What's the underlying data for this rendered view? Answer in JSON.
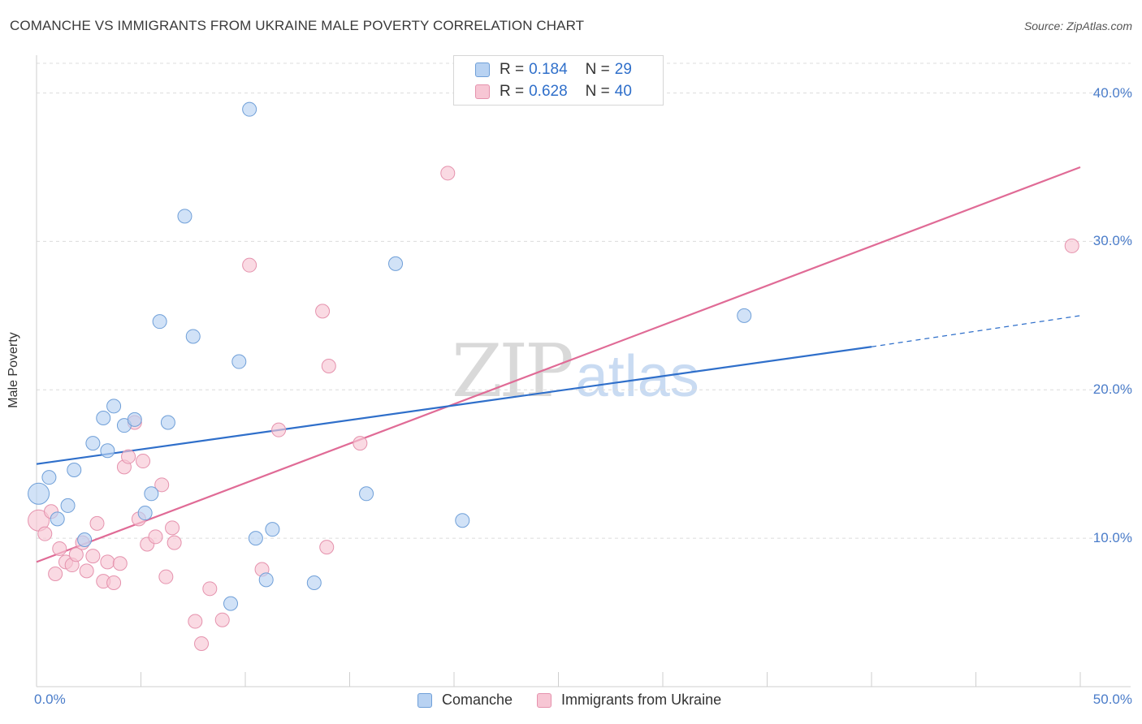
{
  "title": "COMANCHE VS IMMIGRANTS FROM UKRAINE MALE POVERTY CORRELATION CHART",
  "source": "Source: ZipAtlas.com",
  "watermark": {
    "zip": "ZIP",
    "atlas": "atlas"
  },
  "legend": {
    "series1": {
      "r_label": "R =",
      "r_value": "0.184",
      "n_label": "N =",
      "n_value": "29"
    },
    "series2": {
      "r_label": "R =",
      "r_value": "0.628",
      "n_label": "N =",
      "n_value": "40"
    }
  },
  "colors": {
    "comanche_fill": "#b8d2f2",
    "comanche_stroke": "#6f9fd8",
    "comanche_line": "#2f6fca",
    "ukraine_fill": "#f7c6d4",
    "ukraine_stroke": "#e592ad",
    "ukraine_line": "#e06b96",
    "grid": "#dcdcdc",
    "tick_text": "#4a7cc9"
  },
  "chart_data": {
    "type": "scatter",
    "title": "COMANCHE VS IMMIGRANTS FROM UKRAINE MALE POVERTY CORRELATION CHART",
    "xlabel": "",
    "ylabel": "Male Poverty",
    "xlim": [
      0,
      50
    ],
    "ylim": [
      0,
      42
    ],
    "x_tick_labels": [
      "0.0%",
      "50.0%"
    ],
    "y_ticks": [
      10,
      20,
      30,
      40
    ],
    "y_tick_labels": [
      "10.0%",
      "20.0%",
      "30.0%",
      "40.0%"
    ],
    "legend_position": "top-center",
    "series": [
      {
        "name": "Comanche",
        "r": 0.184,
        "n": 29,
        "trend": {
          "x": [
            0,
            40
          ],
          "y": [
            15.0,
            22.9
          ],
          "dashed_extension": {
            "x": [
              40,
              50
            ],
            "y": [
              22.9,
              25.0
            ]
          }
        },
        "points": [
          {
            "x": 0.1,
            "y": 13.0,
            "big": true
          },
          {
            "x": 0.6,
            "y": 14.1
          },
          {
            "x": 1.0,
            "y": 11.3
          },
          {
            "x": 1.5,
            "y": 12.2
          },
          {
            "x": 1.8,
            "y": 14.6
          },
          {
            "x": 2.3,
            "y": 9.9
          },
          {
            "x": 2.7,
            "y": 16.4
          },
          {
            "x": 3.2,
            "y": 18.1
          },
          {
            "x": 3.4,
            "y": 15.9
          },
          {
            "x": 3.7,
            "y": 18.9
          },
          {
            "x": 4.2,
            "y": 17.6
          },
          {
            "x": 4.7,
            "y": 18.0
          },
          {
            "x": 5.2,
            "y": 11.7
          },
          {
            "x": 5.5,
            "y": 13.0
          },
          {
            "x": 5.9,
            "y": 24.6
          },
          {
            "x": 6.3,
            "y": 17.8
          },
          {
            "x": 7.1,
            "y": 31.7
          },
          {
            "x": 7.5,
            "y": 23.6
          },
          {
            "x": 9.3,
            "y": 5.6
          },
          {
            "x": 9.7,
            "y": 21.9
          },
          {
            "x": 10.2,
            "y": 38.9
          },
          {
            "x": 10.5,
            "y": 10.0
          },
          {
            "x": 11.0,
            "y": 7.2
          },
          {
            "x": 11.3,
            "y": 10.6
          },
          {
            "x": 13.3,
            "y": 7.0
          },
          {
            "x": 15.8,
            "y": 13.0
          },
          {
            "x": 17.2,
            "y": 28.5
          },
          {
            "x": 20.4,
            "y": 11.2
          },
          {
            "x": 33.9,
            "y": 25.0
          }
        ]
      },
      {
        "name": "Immigrants from Ukraine",
        "r": 0.628,
        "n": 40,
        "trend": {
          "x": [
            0,
            50
          ],
          "y": [
            8.4,
            35.0
          ]
        },
        "points": [
          {
            "x": 0.1,
            "y": 11.2,
            "big": true
          },
          {
            "x": 0.4,
            "y": 10.3
          },
          {
            "x": 0.7,
            "y": 11.8
          },
          {
            "x": 0.9,
            "y": 7.6
          },
          {
            "x": 1.1,
            "y": 9.3
          },
          {
            "x": 1.4,
            "y": 8.4
          },
          {
            "x": 1.7,
            "y": 8.2
          },
          {
            "x": 1.9,
            "y": 8.9
          },
          {
            "x": 2.2,
            "y": 9.7
          },
          {
            "x": 2.4,
            "y": 7.8
          },
          {
            "x": 2.7,
            "y": 8.8
          },
          {
            "x": 2.9,
            "y": 11.0
          },
          {
            "x": 3.2,
            "y": 7.1
          },
          {
            "x": 3.4,
            "y": 8.4
          },
          {
            "x": 3.7,
            "y": 7.0
          },
          {
            "x": 4.0,
            "y": 8.3
          },
          {
            "x": 4.2,
            "y": 14.8
          },
          {
            "x": 4.4,
            "y": 15.5
          },
          {
            "x": 4.7,
            "y": 17.8
          },
          {
            "x": 4.9,
            "y": 11.3
          },
          {
            "x": 5.1,
            "y": 15.2
          },
          {
            "x": 5.3,
            "y": 9.6
          },
          {
            "x": 5.7,
            "y": 10.1
          },
          {
            "x": 6.0,
            "y": 13.6
          },
          {
            "x": 6.2,
            "y": 7.4
          },
          {
            "x": 6.5,
            "y": 10.7
          },
          {
            "x": 6.6,
            "y": 9.7
          },
          {
            "x": 7.6,
            "y": 4.4
          },
          {
            "x": 7.9,
            "y": 2.9
          },
          {
            "x": 8.3,
            "y": 6.6
          },
          {
            "x": 8.9,
            "y": 4.5
          },
          {
            "x": 10.2,
            "y": 28.4
          },
          {
            "x": 10.8,
            "y": 7.9
          },
          {
            "x": 11.6,
            "y": 17.3
          },
          {
            "x": 13.7,
            "y": 25.3
          },
          {
            "x": 13.9,
            "y": 9.4
          },
          {
            "x": 14.0,
            "y": 21.6
          },
          {
            "x": 15.5,
            "y": 16.4
          },
          {
            "x": 19.7,
            "y": 34.6
          },
          {
            "x": 49.6,
            "y": 29.7
          }
        ]
      }
    ]
  }
}
